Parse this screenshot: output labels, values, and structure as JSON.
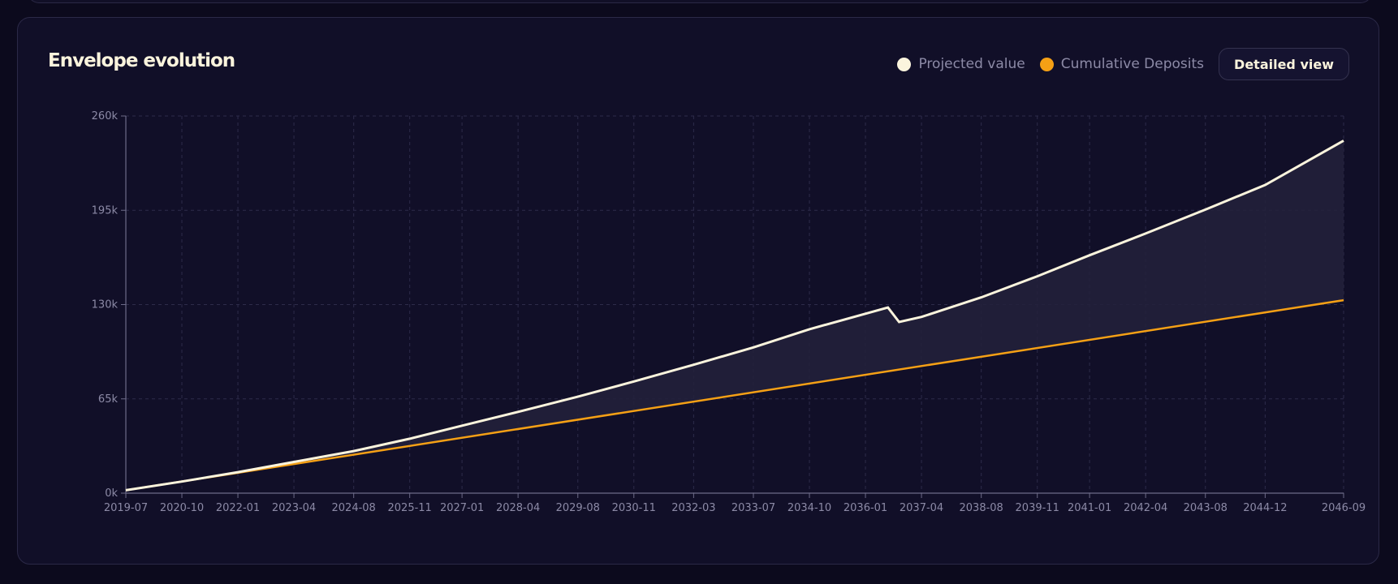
{
  "card": {
    "title": "Envelope evolution",
    "detail_button_label": "Detailed view"
  },
  "legend": [
    {
      "label": "Projected value",
      "color": "#fbf4dd"
    },
    {
      "label": "Cumulative Deposits",
      "color": "#f5a015"
    }
  ],
  "chart_data": {
    "type": "line",
    "title": "Envelope evolution",
    "xlabel": "",
    "ylabel": "",
    "y_ticks": [
      "0k",
      "65k",
      "130k",
      "195k",
      "260k"
    ],
    "ylim": [
      0,
      260000
    ],
    "x_ticks": [
      "2019-07",
      "2020-10",
      "2022-01",
      "2023-04",
      "2024-08",
      "2025-11",
      "2027-01",
      "2028-04",
      "2029-08",
      "2030-11",
      "2032-03",
      "2033-07",
      "2034-10",
      "2036-01",
      "2037-04",
      "2038-08",
      "2039-11",
      "2041-01",
      "2042-04",
      "2043-08",
      "2044-12",
      "2046-09"
    ],
    "grid": true,
    "area_between_series": true,
    "series": [
      {
        "name": "Projected value",
        "color": "#fbf4dd",
        "points": [
          [
            "2019-07",
            2000
          ],
          [
            "2020-10",
            8000
          ],
          [
            "2022-01",
            14500
          ],
          [
            "2023-04",
            21500
          ],
          [
            "2024-08",
            29000
          ],
          [
            "2025-11",
            37500
          ],
          [
            "2027-01",
            46500
          ],
          [
            "2028-04",
            56000
          ],
          [
            "2029-08",
            66500
          ],
          [
            "2030-11",
            77000
          ],
          [
            "2032-03",
            88500
          ],
          [
            "2033-07",
            100500
          ],
          [
            "2034-10",
            113000
          ],
          [
            "2036-07",
            128000
          ],
          [
            "2036-10",
            118000
          ],
          [
            "2037-04",
            121500
          ],
          [
            "2038-08",
            135000
          ],
          [
            "2039-11",
            149500
          ],
          [
            "2041-01",
            164000
          ],
          [
            "2042-04",
            179000
          ],
          [
            "2043-08",
            195500
          ],
          [
            "2044-12",
            212500
          ],
          [
            "2046-09",
            243000
          ]
        ]
      },
      {
        "name": "Cumulative Deposits",
        "color": "#f5a015",
        "points": [
          [
            "2019-07",
            2000
          ],
          [
            "2046-09",
            133000
          ]
        ]
      }
    ]
  }
}
